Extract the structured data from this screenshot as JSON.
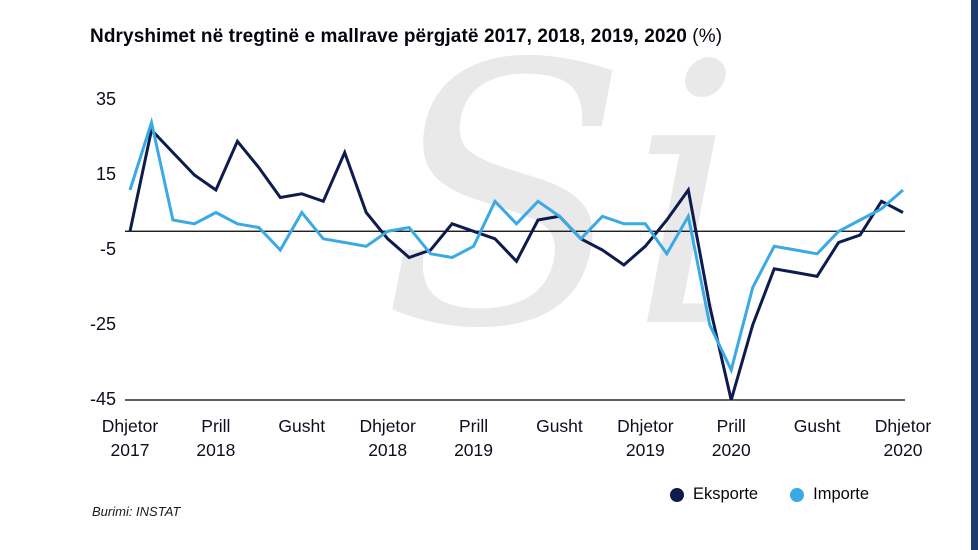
{
  "title": {
    "main": "Ndryshimet në tregtinë e mallrave përgjatë 2017, 2018, 2019, 2020",
    "suffix": " (%)"
  },
  "source": "Burimi: INSTAT",
  "watermark": {
    "text": "Si"
  },
  "legend": [
    {
      "label": "Eksporte",
      "color": "#0e1b4d"
    },
    {
      "label": "Importe",
      "color": "#3aa9e6"
    }
  ],
  "colors": {
    "eksporte_line": "#0e1b4d",
    "importe_line": "#3aa9e6",
    "axis_line": "#000000",
    "watermark": "#e9e9e9",
    "right_strip": "#1d3c6d",
    "text": "#0c0f1e"
  },
  "chart_data": {
    "type": "line",
    "title": "Ndryshimet në tregtinë e mallrave përgjatë 2017, 2018, 2019, 2020 (%)",
    "xlabel": "",
    "ylabel": "",
    "frequency": "monthly",
    "x_start": "Dhjetor 2017",
    "x_end": "Dhjetor 2020",
    "ylim": [
      -45,
      35
    ],
    "y_ticks": [
      35,
      15,
      -5,
      -25,
      -45
    ],
    "zero_line": 0,
    "grid": false,
    "legend_position": "bottom-right",
    "x_ticks": [
      {
        "month": "Dhjetor",
        "year": "2017",
        "index": 0
      },
      {
        "month": "Prill",
        "year": "2018",
        "index": 4
      },
      {
        "month": "Gusht",
        "year": "",
        "index": 8
      },
      {
        "month": "Dhjetor",
        "year": "2018",
        "index": 12
      },
      {
        "month": "Prill",
        "year": "2019",
        "index": 16
      },
      {
        "month": "Gusht",
        "year": "",
        "index": 20
      },
      {
        "month": "Dhjetor",
        "year": "2019",
        "index": 24
      },
      {
        "month": "Prill",
        "year": "2020",
        "index": 28
      },
      {
        "month": "Gusht",
        "year": "",
        "index": 32
      },
      {
        "month": "Dhjetor",
        "year": "2020",
        "index": 36
      }
    ],
    "series": [
      {
        "name": "Eksporte",
        "color": "#0e1b4d",
        "values": [
          0,
          27,
          21,
          15,
          11,
          24,
          17,
          9,
          10,
          8,
          21,
          5,
          -2,
          -7,
          -5,
          2,
          0,
          -2,
          -8,
          3,
          4,
          -2,
          -5,
          -9,
          -4,
          3,
          11,
          -20,
          -45,
          -25,
          -10,
          -11,
          -12,
          -3,
          -1,
          8,
          5
        ]
      },
      {
        "name": "Importe",
        "color": "#3aa9e6",
        "values": [
          11,
          29,
          3,
          2,
          5,
          2,
          1,
          -5,
          5,
          -2,
          -3,
          -4,
          0,
          1,
          -6,
          -7,
          -4,
          8,
          2,
          8,
          4,
          -2,
          4,
          2,
          2,
          -6,
          4,
          -25,
          -37,
          -15,
          -4,
          -5,
          -6,
          0,
          3,
          6,
          11
        ]
      }
    ]
  }
}
